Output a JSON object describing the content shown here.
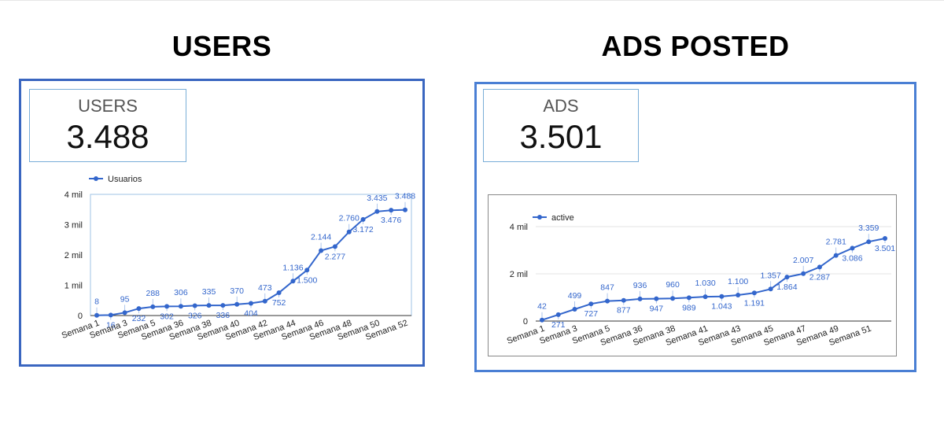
{
  "left": {
    "heading": "USERS",
    "kpi": {
      "label": "USERS",
      "value": "3.488"
    }
  },
  "right": {
    "heading": "ADS POSTED",
    "kpi": {
      "label": "ADS",
      "value": "3.501"
    }
  },
  "colors": {
    "line": "#3366cc",
    "frame_left": "#3a66c0",
    "frame_right": "#4a7fd4",
    "kpi_border": "#7aaed8"
  },
  "chart_data": [
    {
      "type": "line",
      "series": [
        {
          "name": "Usuarios",
          "values": [
            8,
            16,
            95,
            232,
            288,
            302,
            306,
            326,
            335,
            336,
            370,
            404,
            473,
            752,
            1136,
            1500,
            2144,
            2277,
            2760,
            3172,
            3435,
            3476,
            3488
          ]
        }
      ],
      "data_labels": [
        "8",
        "16",
        "95",
        "232",
        "288",
        "302",
        "306",
        "326",
        "335",
        "336",
        "370",
        "404",
        "473",
        "752",
        "1.136",
        "1.500",
        "2.144",
        "2.277",
        "2.760",
        "3.172",
        "3.435",
        "3.476",
        "3.488"
      ],
      "tick_labels": [
        "Semana 1",
        "Semana 3",
        "Semana 5",
        "Semana 36",
        "Semana 38",
        "Semana 40",
        "Semana 42",
        "Semana 44",
        "Semana 46",
        "Semana 48",
        "Semana 50",
        "Semana 52"
      ],
      "y_ticks": [
        "0",
        "1 mil",
        "2 mil",
        "3 mil",
        "4 mil"
      ],
      "ylim": [
        0,
        4000
      ],
      "grid": false,
      "legend": "top-left"
    },
    {
      "type": "line",
      "series": [
        {
          "name": "active",
          "values": [
            42,
            271,
            499,
            727,
            847,
            877,
            936,
            947,
            960,
            989,
            1030,
            1043,
            1100,
            1191,
            1357,
            1864,
            2007,
            2287,
            2781,
            3086,
            3359,
            3501
          ]
        }
      ],
      "data_labels": [
        "42",
        "271",
        "499",
        "727",
        "847",
        "877",
        "936",
        "947",
        "960",
        "989",
        "1.030",
        "1.043",
        "1.100",
        "1.191",
        "1.357",
        "1.864",
        "2.007",
        "2.287",
        "2.781",
        "3.086",
        "3.359",
        "3.501"
      ],
      "tick_labels": [
        "Semana 1",
        "Semana 3",
        "Semana 5",
        "Semana 36",
        "Semana 38",
        "Semana 41",
        "Semana 43",
        "Semana 45",
        "Semana 47",
        "Semana 49",
        "Semana 51"
      ],
      "y_ticks": [
        "0",
        "2 mil",
        "4 mil"
      ],
      "ylim": [
        0,
        5000
      ],
      "grid": true,
      "legend": "top-left"
    }
  ]
}
